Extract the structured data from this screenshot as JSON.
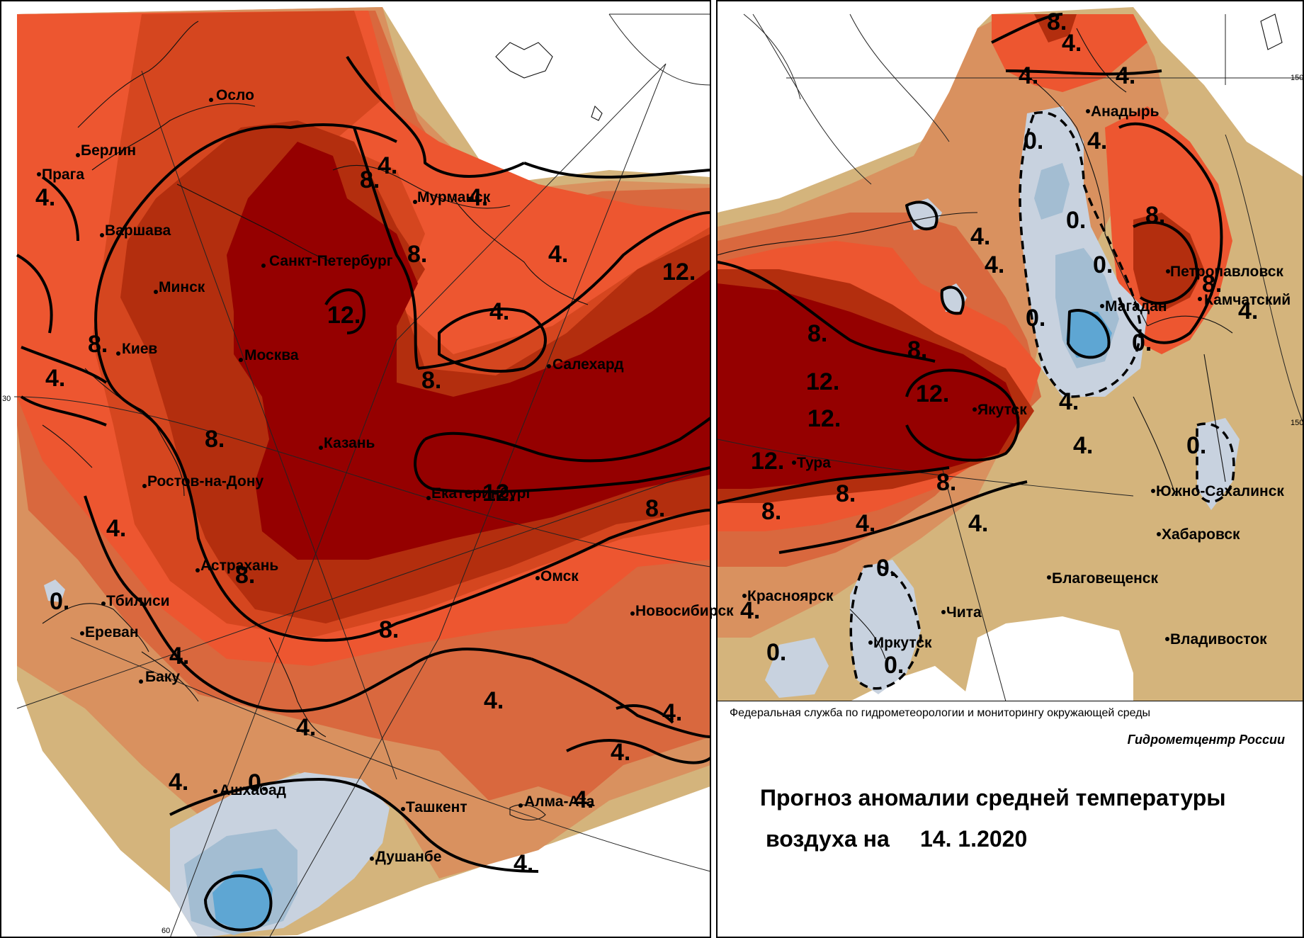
{
  "colors": {
    "anomaly_gt_12": "#950000",
    "anomaly_8_12": "#b32e0e",
    "anomaly_6_8": "#d5461f",
    "anomaly_4_6": "#ed5630",
    "anomaly_2_4": "#d9683e",
    "anomaly_1_2": "#d9915f",
    "anomaly_0_1": "#d4b47c",
    "anomaly_0_-1": "#c8d2df",
    "anomaly_-1_-2": "#a3bdd2",
    "anomaly_lt_-2": "#5ea6d3",
    "frame": "#000000",
    "background": "#ffffff"
  },
  "left_map": {
    "cities": [
      {
        "name": "Осло"
      },
      {
        "name": "Берлин"
      },
      {
        "name": "Прага"
      },
      {
        "name": "Варшава"
      },
      {
        "name": "Мурманск"
      },
      {
        "name": "Санкт-Петербург"
      },
      {
        "name": "Минск"
      },
      {
        "name": "Киев"
      },
      {
        "name": "Москва"
      },
      {
        "name": "Салехард"
      },
      {
        "name": "Казань"
      },
      {
        "name": "Ростов-на-Дону"
      },
      {
        "name": "Екатеринбург"
      },
      {
        "name": "Астрахань"
      },
      {
        "name": "Омск"
      },
      {
        "name": "Тбилиси"
      },
      {
        "name": "Новосибирск"
      },
      {
        "name": "Ереван"
      },
      {
        "name": "Баку"
      },
      {
        "name": "Ашхабад"
      },
      {
        "name": "Ташкент"
      },
      {
        "name": "Алма-Ата"
      },
      {
        "name": "Душанбе"
      }
    ],
    "isoline_labels": [
      "4.",
      "4.",
      "4.",
      "4.",
      "4.",
      "4.",
      "8.",
      "8.",
      "8.",
      "8.",
      "8.",
      "8.",
      "8.",
      "12.",
      "12.",
      "12.",
      "4.",
      "4.",
      "4.",
      "4.",
      "4.",
      "4.",
      "4.",
      "4.",
      "8.",
      "0.",
      "0.",
      "4."
    ],
    "grid_labels": [
      "30",
      "60"
    ]
  },
  "right_map": {
    "cities": [
      {
        "name": "Анадырь"
      },
      {
        "name": "Петропавловск"
      },
      {
        "name": "Камчатский"
      },
      {
        "name": "Магадан"
      },
      {
        "name": "Якутск"
      },
      {
        "name": "Тура"
      },
      {
        "name": "Южно-Сахалинск"
      },
      {
        "name": "Хабаровск"
      },
      {
        "name": "Благовещенск"
      },
      {
        "name": "Красноярск"
      },
      {
        "name": "Чита"
      },
      {
        "name": "Иркутск"
      },
      {
        "name": "Владивосток"
      }
    ],
    "isoline_labels": [
      "8.",
      "4.",
      "4.",
      "4.",
      "4.",
      "0.",
      "4.",
      "4.",
      "0.",
      "0.",
      "8.",
      "8.",
      "0.",
      "0.",
      "4.",
      "8.",
      "8.",
      "12.",
      "12.",
      "12.",
      "12.",
      "0.",
      "4.",
      "4.",
      "8.",
      "8.",
      "8.",
      "4.",
      "4.",
      "0.",
      "4.",
      "0.",
      "0."
    ],
    "grid_labels": [
      "150",
      "150"
    ]
  },
  "info_panel": {
    "agency": "Федеральная служба по гидрометеорологии и мониторингу окружающей среды",
    "center": "Гидрометцентр России",
    "title_line1": "Прогноз аномалии средней температуры",
    "title_line2": "воздуха на",
    "date": "14. 1.2020"
  }
}
